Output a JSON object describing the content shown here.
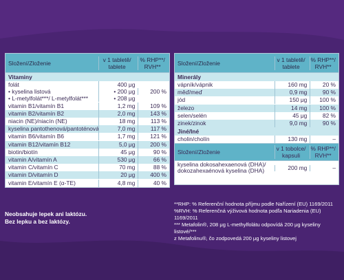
{
  "left_table": {
    "header": {
      "col1": "Složení/Zloženie",
      "col2a": "v 1 tabletě/",
      "col2b": "tablete",
      "col3a": "% RHP**/",
      "col3b": "RVH**"
    },
    "section": "Vitaminy",
    "rows": [
      {
        "name": "folát",
        "value": "400 μg",
        "pct": "",
        "style": "sub"
      },
      {
        "name": "• kyselina listová",
        "value": "• 200 μg",
        "pct": "200 %",
        "style": "sub"
      },
      {
        "name": "• L-metylfolát***/ L-metylfolát***",
        "value": "• 208 μg",
        "pct": "",
        "style": "sub"
      },
      {
        "name": "vitamin B1/vitamín B1",
        "value": "1,2 mg",
        "pct": "109 %",
        "style": ""
      },
      {
        "name": "vitamin B2/vitamín B2",
        "value": "2,0 mg",
        "pct": "143 %",
        "style": "alt"
      },
      {
        "name": "niacin (NE)/niacín (NE)",
        "value": "18 mg",
        "pct": "113 %",
        "style": ""
      },
      {
        "name": "kyselina pantothenová/pantoténová",
        "value": "7,0 mg",
        "pct": "117 %",
        "style": "alt"
      },
      {
        "name": "vitamin B6/vitamín B6",
        "value": "1,7 mg",
        "pct": "121 %",
        "style": ""
      },
      {
        "name": "vitamin B12/vitamín B12",
        "value": "5,0 μg",
        "pct": "200 %",
        "style": "alt"
      },
      {
        "name": "biotin/biotín",
        "value": "45 μg",
        "pct": "90 %",
        "style": ""
      },
      {
        "name": "vitamin A/vitamín A",
        "value": "530 μg",
        "pct": "66 %",
        "style": "alt"
      },
      {
        "name": "vitamin C/vitamín C",
        "value": "70 mg",
        "pct": "88 %",
        "style": ""
      },
      {
        "name": "vitamin D/vitamín D",
        "value": "20 μg",
        "pct": "400 %",
        "style": "alt"
      },
      {
        "name": "vitamin E/vitamín E (α-TE)",
        "value": "4,8 mg",
        "pct": "40 %",
        "style": ""
      }
    ]
  },
  "right_table": {
    "header": {
      "col1": "Složení/Zloženie",
      "col2a": "v 1 tabletě/",
      "col2b": "tablete",
      "col3a": "% RHP**/",
      "col3b": "RVH**"
    },
    "section_minerals": "Minerály",
    "minerals": [
      {
        "name": "vápník/vápnik",
        "value": "160 mg",
        "pct": "20 %",
        "style": ""
      },
      {
        "name": "měď/meď",
        "value": "0,9 mg",
        "pct": "90 %",
        "style": "alt"
      },
      {
        "name": "jód",
        "value": "150 μg",
        "pct": "100 %",
        "style": ""
      },
      {
        "name": "železo",
        "value": "14 mg",
        "pct": "100 %",
        "style": "alt"
      },
      {
        "name": "selen/selén",
        "value": "45 μg",
        "pct": "82 %",
        "style": ""
      },
      {
        "name": "zinek/zinok",
        "value": "9,0 mg",
        "pct": "90 %",
        "style": "alt"
      }
    ],
    "section_other": "Jiné/Iné",
    "other": [
      {
        "name": "cholin/cholín",
        "value": "130 mg",
        "pct": "–",
        "style": ""
      }
    ],
    "header2": {
      "col1": "Složení/Zloženie",
      "col2a": "v 1 tobolce/",
      "col2b": "kapsuli",
      "col3a": "% RHP**/",
      "col3b": "RVH**"
    },
    "capsule": {
      "name_line1": "kyselina dokosahexaenová (DHA)/",
      "name_line2": "dokozahexaénová kyselina (DHA)",
      "value": "200 mg",
      "pct": "–"
    }
  },
  "notes_left": {
    "line1": "Neobsahuje lepek ani laktózu.",
    "line2": "Bez lepku a bez laktózy."
  },
  "notes_right": {
    "line1": "**RHP: % Referenční hodnota příjmu podle Nařízení (EU) 1169/2011",
    "line2": "%RVH: % Referenčná výživová hodnota podľa Nariadenia (EU) 1169/2011",
    "line3": "*** Metafolin®, 208 μg L-methylfolátu odpovídá 200 μg kyseliny listové/***",
    "line4": "z Metafolinu®, čo zodpovedá 200 μg kyseliny listovej"
  },
  "colors": {
    "background": "#4a2472",
    "header_teal": "#5fb3c8",
    "row_alt": "#c9e7ee"
  }
}
